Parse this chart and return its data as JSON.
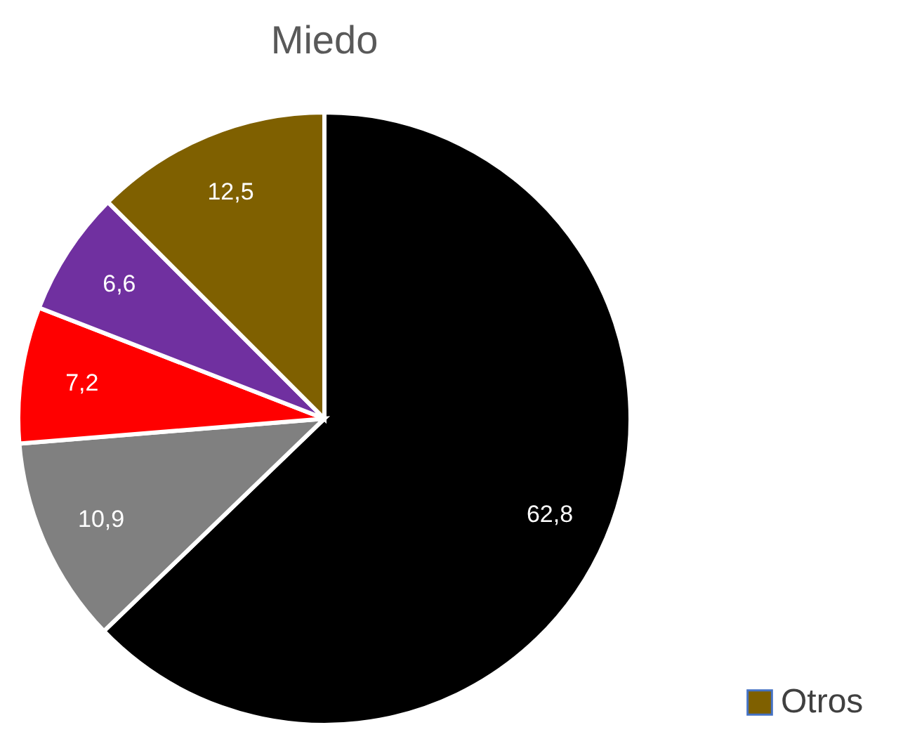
{
  "chart_data": {
    "type": "pie",
    "title": "Miedo",
    "categories": [
      null,
      null,
      null,
      null,
      "Otros"
    ],
    "values": [
      62.8,
      10.9,
      7.2,
      6.6,
      12.5
    ],
    "colors": [
      "#000000",
      "#808080",
      "#ff0000",
      "#7030a0",
      "#7f6000"
    ],
    "value_labels": [
      "62,8",
      "10,9",
      "7,2",
      "6,6",
      "12,5"
    ],
    "legend": "bottom right"
  }
}
